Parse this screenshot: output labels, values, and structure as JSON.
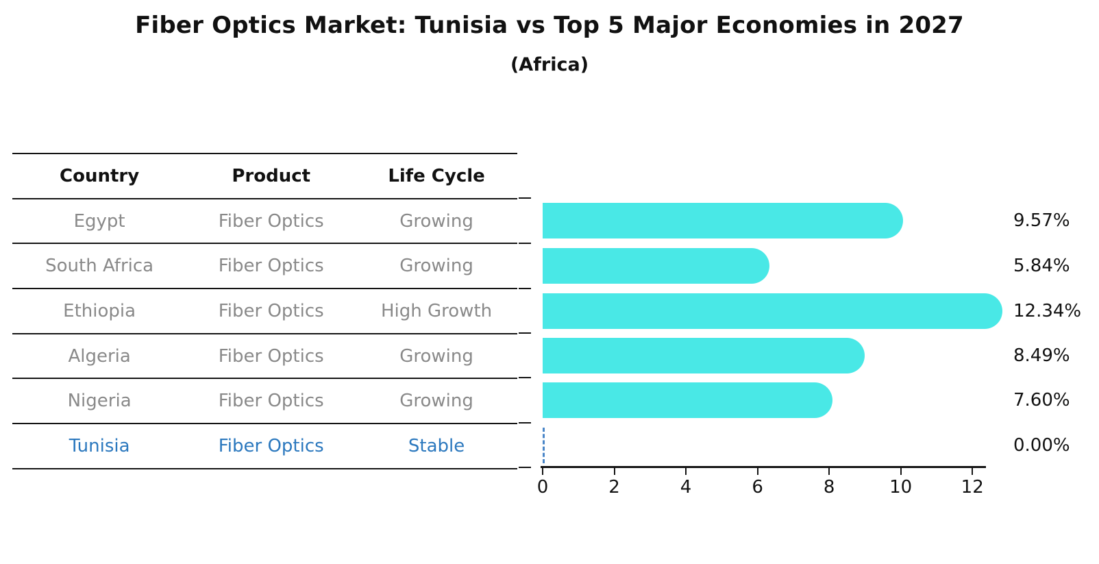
{
  "header": {
    "title": "Fiber Optics Market: Tunisia vs Top 5 Major Economies in 2027",
    "subtitle": "(Africa)"
  },
  "table": {
    "columns": [
      "Country",
      "Product",
      "Life Cycle"
    ],
    "rows": [
      {
        "country": "Egypt",
        "product": "Fiber Optics",
        "life_cycle": "Growing",
        "highlight": false
      },
      {
        "country": "South Africa",
        "product": "Fiber Optics",
        "life_cycle": "Growing",
        "highlight": false
      },
      {
        "country": "Ethiopia",
        "product": "Fiber Optics",
        "life_cycle": "High Growth",
        "highlight": false
      },
      {
        "country": "Algeria",
        "product": "Fiber Optics",
        "life_cycle": "Growing",
        "highlight": false
      },
      {
        "country": "Nigeria",
        "product": "Fiber Optics",
        "life_cycle": "Growing",
        "highlight": false
      },
      {
        "country": "Tunisia",
        "product": "Fiber Optics",
        "life_cycle": "Stable",
        "highlight": true
      }
    ]
  },
  "chart_data": {
    "type": "bar",
    "orientation": "horizontal",
    "title": "Fiber Optics Market: Tunisia vs Top 5 Major Economies in 2027",
    "subtitle": "(Africa)",
    "categories": [
      "Egypt",
      "South Africa",
      "Ethiopia",
      "Algeria",
      "Nigeria",
      "Tunisia"
    ],
    "values": [
      9.57,
      5.84,
      12.34,
      8.49,
      7.6,
      0.0
    ],
    "value_labels": [
      "9.57%",
      "5.84%",
      "12.34%",
      "8.49%",
      "7.60%",
      "0.00%"
    ],
    "xlabel": "",
    "ylabel": "",
    "xlim": [
      0,
      12.34
    ],
    "x_ticks": [
      0,
      2,
      4,
      6,
      8,
      10,
      12
    ],
    "grid": false,
    "legend": "none",
    "bar_color": "#49E8E6",
    "zero_marker_style": "dashed-line",
    "zero_marker_color": "#4A86C8",
    "highlight_text_color": "#2B78BE"
  }
}
